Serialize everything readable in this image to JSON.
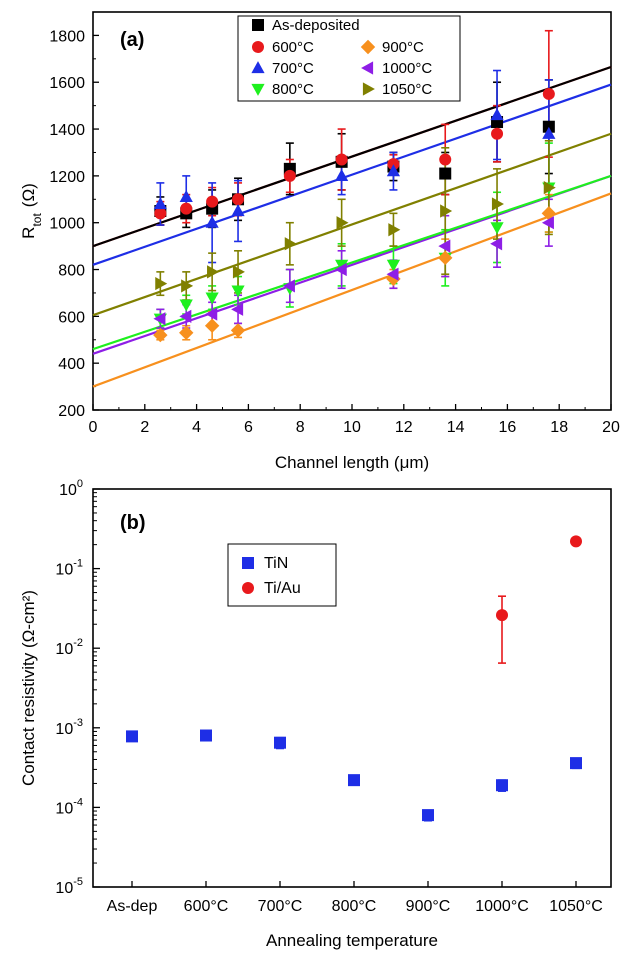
{
  "chart_data": [
    {
      "panel_label": "(a)",
      "type": "scatter",
      "xlabel": "Channel length (μm)",
      "ylabel_main": "R",
      "ylabel_sub": "tot",
      "ylabel_unit": "(Ω)",
      "xlim": [
        0,
        20
      ],
      "ylim": [
        200,
        1900
      ],
      "xticks": [
        0,
        2,
        4,
        6,
        8,
        10,
        12,
        14,
        16,
        18,
        20
      ],
      "yticks": [
        200,
        400,
        600,
        800,
        1000,
        1200,
        1400,
        1600,
        1800
      ],
      "grid": false,
      "legend_position": "top-center",
      "x": [
        2.6,
        3.6,
        4.6,
        5.6,
        7.6,
        9.6,
        11.6,
        13.6,
        15.6,
        17.6
      ],
      "series": [
        {
          "name": "As-deposited",
          "marker": "square",
          "color": "#000000",
          "values": [
            1050,
            1040,
            1060,
            1100,
            1230,
            1260,
            1240,
            1210,
            1430,
            1410
          ],
          "errors": [
            60,
            60,
            80,
            90,
            110,
            120,
            60,
            90,
            170,
            200
          ],
          "fit": [
            900,
            1665
          ]
        },
        {
          "name": "600°C",
          "marker": "circle",
          "color": "#e8191c",
          "values": [
            1040,
            1060,
            1090,
            1100,
            1200,
            1270,
            1250,
            1270,
            1380,
            1550
          ],
          "errors": [
            50,
            60,
            60,
            70,
            70,
            130,
            40,
            150,
            120,
            270
          ],
          "fit": [
            900,
            1665
          ]
        },
        {
          "name": "700°C",
          "marker": "triangle-up",
          "color": "#1e2ee6",
          "values": [
            1080,
            1110,
            1000,
            1050,
            null,
            1200,
            1220,
            null,
            1460,
            1380
          ],
          "errors": [
            90,
            90,
            170,
            130,
            null,
            80,
            80,
            null,
            190,
            230
          ],
          "fit": [
            820,
            1590
          ]
        },
        {
          "name": "800°C",
          "marker": "triangle-down",
          "color": "#1ef01e",
          "values": [
            590,
            650,
            680,
            710,
            720,
            820,
            820,
            850,
            980,
            1150
          ],
          "errors": [
            40,
            40,
            50,
            60,
            80,
            90,
            80,
            120,
            150,
            190
          ],
          "fit": [
            460,
            1200
          ]
        },
        {
          "name": "900°C",
          "marker": "diamond",
          "color": "#f7901e",
          "values": [
            520,
            530,
            560,
            540,
            null,
            null,
            760,
            850,
            null,
            1040
          ],
          "errors": [
            20,
            30,
            60,
            30,
            null,
            null,
            40,
            80,
            null,
            80
          ],
          "fit": [
            300,
            1125
          ]
        },
        {
          "name": "1000°C",
          "marker": "triangle-left",
          "color": "#8e1ee6",
          "values": [
            590,
            600,
            610,
            630,
            730,
            800,
            780,
            900,
            910,
            1000
          ],
          "errors": [
            40,
            50,
            50,
            60,
            70,
            80,
            60,
            130,
            100,
            100
          ],
          "fit": [
            440,
            1200
          ]
        },
        {
          "name": "1050°C",
          "marker": "triangle-right",
          "color": "#808000",
          "values": [
            740,
            730,
            790,
            790,
            910,
            1000,
            970,
            1050,
            1080,
            1150
          ],
          "errors": [
            50,
            60,
            80,
            90,
            90,
            100,
            70,
            270,
            150,
            200
          ],
          "fit": [
            605,
            1380
          ]
        }
      ]
    },
    {
      "panel_label": "(b)",
      "type": "scatter",
      "xlabel": "Annealing temperature",
      "ylabel": "Contact resistivity (Ω-cm²)",
      "yscale": "log",
      "ylim": [
        1e-05,
        1
      ],
      "yticks": [
        {
          "base": "10",
          "exp": "-5"
        },
        {
          "base": "10",
          "exp": "-4"
        },
        {
          "base": "10",
          "exp": "-3"
        },
        {
          "base": "10",
          "exp": "-2"
        },
        {
          "base": "10",
          "exp": "-1"
        },
        {
          "base": "10",
          "exp": "0"
        }
      ],
      "categories": [
        "As-dep",
        "600°C",
        "700°C",
        "800°C",
        "900°C",
        "1000°C",
        "1050°C"
      ],
      "grid": false,
      "legend_position": "top-left",
      "series": [
        {
          "name": "TiN",
          "marker": "square",
          "color": "#1e2ee6",
          "values": [
            0.00078,
            0.0008,
            0.00065,
            0.00022,
            8e-05,
            0.00019,
            0.00036
          ],
          "err_low": [
            0.00068,
            0.0007,
            0.00055,
            0.00019,
            6.8e-05,
            0.00016,
            0.00031
          ],
          "err_high": [
            0.00088,
            0.0009,
            0.00075,
            0.00025,
            9.2e-05,
            0.00022,
            0.00041
          ]
        },
        {
          "name": "Ti/Au",
          "marker": "circle",
          "color": "#e8191c",
          "values": [
            null,
            null,
            null,
            null,
            null,
            0.026,
            0.22
          ],
          "err_low": [
            null,
            null,
            null,
            null,
            null,
            0.0065,
            0.2
          ],
          "err_high": [
            null,
            null,
            null,
            null,
            null,
            0.045,
            0.24
          ]
        }
      ]
    }
  ]
}
